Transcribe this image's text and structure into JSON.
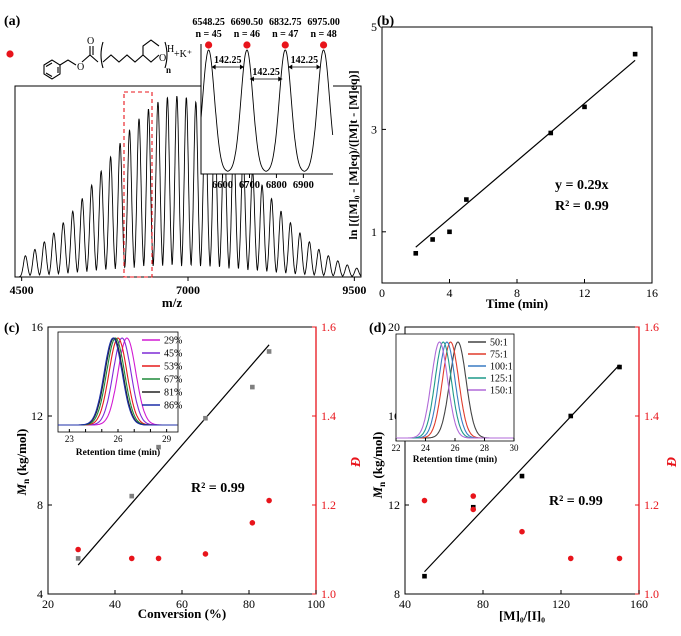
{
  "figure": {
    "panel_labels": [
      "(a)",
      "(b)",
      "(c)",
      "(d)"
    ]
  },
  "colors": {
    "axis": "#000000",
    "red_axis": "#e8141b",
    "mn_point": "#7f7f7f",
    "dispersity_point": "#e8141b",
    "fit_line": "#000000",
    "ms_dashed_box": "#e8141b"
  },
  "chart_data": [
    {
      "id": "a",
      "type": "line",
      "title": "(a)",
      "structure_label": "+K⁺",
      "structure_n": "n",
      "structure_h": "H",
      "structure_o": "O",
      "xlabel": "m/z",
      "ylabel": "",
      "xlim": [
        4400,
        9600
      ],
      "xticks": [
        4500,
        7000,
        9500
      ],
      "peaks": {
        "first_mz": 4556.75,
        "repeat_unit": 142.25,
        "count": 36,
        "center_mz": 6833,
        "sigma": 1100
      },
      "highlight_range": [
        6548.25,
        6975.0
      ],
      "inset": {
        "type": "line",
        "xlim": [
          6520,
          7010
        ],
        "xticks": [
          6600,
          6700,
          6800,
          6900
        ],
        "peaks": [
          {
            "mz": "6548.25",
            "n": "n = 45",
            "value": 6548.25
          },
          {
            "mz": "6690.50",
            "n": "n = 46",
            "value": 6690.5
          },
          {
            "mz": "6832.75",
            "n": "n = 47",
            "value": 6832.75
          },
          {
            "mz": "6975.00",
            "n": "n = 48",
            "value": 6975.0
          }
        ],
        "spacings": [
          "142.25",
          "142.25",
          "142.25"
        ]
      }
    },
    {
      "id": "b",
      "type": "scatter",
      "title": "(b)",
      "xlabel": "Time (min)",
      "ylabel": "ln [([M]₀ - [M]eq)/([M]t - [M]eq)]",
      "xlim": [
        0,
        16
      ],
      "ylim": [
        0,
        5
      ],
      "xticks": [
        0,
        4,
        8,
        12,
        16
      ],
      "yticks": [
        1,
        3,
        5
      ],
      "points": [
        {
          "x": 2,
          "y": 0.58
        },
        {
          "x": 3,
          "y": 0.85
        },
        {
          "x": 4,
          "y": 1.0
        },
        {
          "x": 5,
          "y": 1.63
        },
        {
          "x": 10,
          "y": 2.93
        },
        {
          "x": 12,
          "y": 3.44
        },
        {
          "x": 15,
          "y": 4.47
        }
      ],
      "fit": {
        "x": [
          2,
          15
        ],
        "y": [
          0.7,
          4.35
        ]
      },
      "equation": "y = 0.29x",
      "r2": "R² = 0.99"
    },
    {
      "id": "c",
      "type": "scatter",
      "title": "(c)",
      "xlabel": "Conversion (%)",
      "ylabel_main": "M",
      "ylabel_sub": "n",
      "ylabel_units": " (kg/mol)",
      "y2label": "Đ",
      "xlim": [
        20,
        100
      ],
      "ylim": [
        4,
        16
      ],
      "y2lim": [
        1.0,
        1.6
      ],
      "xticks": [
        20,
        40,
        60,
        80,
        100
      ],
      "yticks": [
        4,
        8,
        12,
        16
      ],
      "y2ticks": [
        "1.0",
        "1.2",
        "1.4",
        "1.6"
      ],
      "series": [
        {
          "name": "Mn",
          "axis": "left",
          "x": [
            29,
            45,
            53,
            67,
            81,
            86
          ],
          "y": [
            5.6,
            8.4,
            10.6,
            11.9,
            13.3,
            14.9
          ]
        },
        {
          "name": "Đ",
          "axis": "right",
          "x": [
            29,
            45,
            53,
            67,
            81,
            86
          ],
          "y": [
            1.1,
            1.08,
            1.08,
            1.09,
            1.16,
            1.21
          ]
        }
      ],
      "fit": {
        "x": [
          29,
          86
        ],
        "y": [
          5.3,
          15.2
        ]
      },
      "r2": "R² = 0.99",
      "inset": {
        "type": "line",
        "xlabel": "Retention time (min)",
        "xlim": [
          22.3,
          29.7
        ],
        "xticks": [
          23,
          24,
          25,
          26,
          27,
          28,
          29
        ],
        "xticklabels": [
          "23",
          "",
          "",
          "26",
          "",
          "",
          "29"
        ],
        "series": [
          {
            "name": "29%",
            "color": "#d21bd3",
            "center": 26.55
          },
          {
            "name": "45%",
            "color": "#7e2bd6",
            "center": 26.25
          },
          {
            "name": "53%",
            "color": "#e51b1b",
            "center": 26.0
          },
          {
            "name": "67%",
            "color": "#1f8a3a",
            "center": 25.85
          },
          {
            "name": "81%",
            "color": "#222222",
            "center": 25.75
          },
          {
            "name": "86%",
            "color": "#1d2fa8",
            "center": 25.7
          }
        ]
      }
    },
    {
      "id": "d",
      "type": "scatter",
      "title": "(d)",
      "xlabel": "[M]₀/[I]₀",
      "ylabel_main": "M",
      "ylabel_sub": "n",
      "ylabel_units": " (kg/mol)",
      "y2label": "Đ",
      "xlim": [
        40,
        160
      ],
      "ylim": [
        8,
        20
      ],
      "y2lim": [
        1.0,
        1.6
      ],
      "xticks": [
        40,
        80,
        120,
        160
      ],
      "yticks": [
        8,
        12,
        16,
        20
      ],
      "y2ticks": [
        "1.0",
        "1.2",
        "1.4",
        "1.6"
      ],
      "series": [
        {
          "name": "Mn",
          "axis": "left",
          "x": [
            50,
            75,
            100,
            125,
            150
          ],
          "y": [
            8.8,
            11.9,
            13.3,
            16.0,
            18.2
          ]
        },
        {
          "name": "Đ",
          "axis": "right",
          "x": [
            50,
            75,
            75,
            100,
            125,
            150
          ],
          "y": [
            1.21,
            1.19,
            1.22,
            1.14,
            1.08,
            1.08
          ]
        }
      ],
      "fit": {
        "x": [
          50,
          150
        ],
        "y": [
          9.0,
          18.3
        ]
      },
      "r2": "R² = 0.99",
      "inset": {
        "type": "line",
        "xlabel": "Retention time (min)",
        "xlim": [
          22,
          30
        ],
        "xticks": [
          22,
          24,
          26,
          28,
          30
        ],
        "xticklabels": [
          "22",
          "24",
          "26",
          "28",
          "30"
        ],
        "series": [
          {
            "name": "50:1",
            "color": "#444444",
            "center": 26.2
          },
          {
            "name": "75:1",
            "color": "#e03c2c",
            "center": 25.7
          },
          {
            "name": "100:1",
            "color": "#3a7cc4",
            "center": 25.45
          },
          {
            "name": "125:1",
            "color": "#1f9a8a",
            "center": 25.2
          },
          {
            "name": "150:1",
            "color": "#b06ad8",
            "center": 24.95
          }
        ]
      }
    }
  ]
}
